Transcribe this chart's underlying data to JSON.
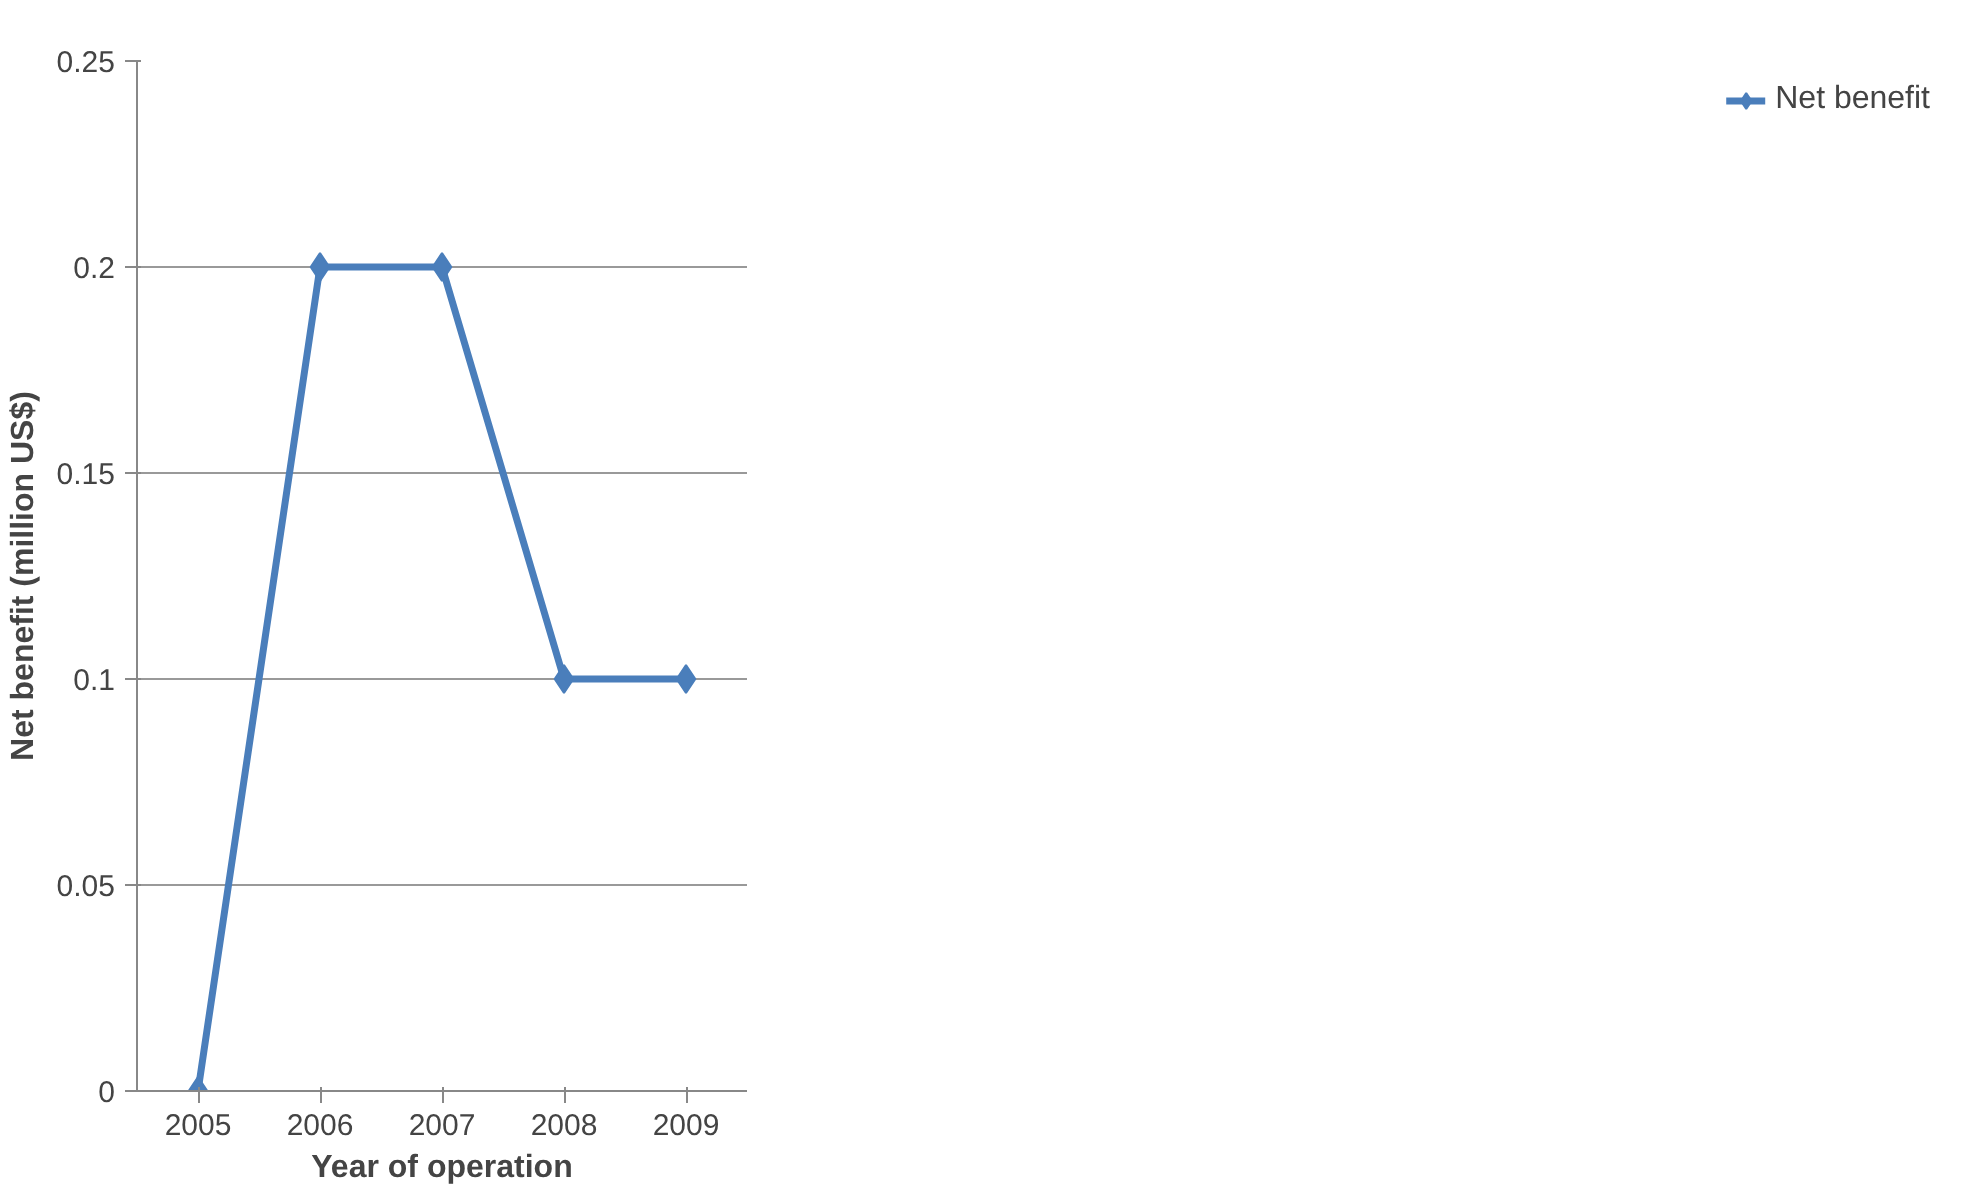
{
  "chart_data": {
    "type": "line",
    "xlabel": "Year of operation",
    "ylabel": "Net benefit (million US$)",
    "categories": [
      "2005",
      "2006",
      "2007",
      "2008",
      "2009"
    ],
    "series": [
      {
        "name": "Net benefit",
        "color": "#4a7ebb",
        "values": [
          0,
          0.2,
          0.2,
          0.1,
          0.1
        ]
      }
    ],
    "ylim": [
      0,
      0.25
    ],
    "yticks": [
      0,
      0.05,
      0.1,
      0.15,
      0.2,
      0.25
    ],
    "grid": "y",
    "legend": "right",
    "marker": "diamond",
    "line_style": "solid"
  }
}
